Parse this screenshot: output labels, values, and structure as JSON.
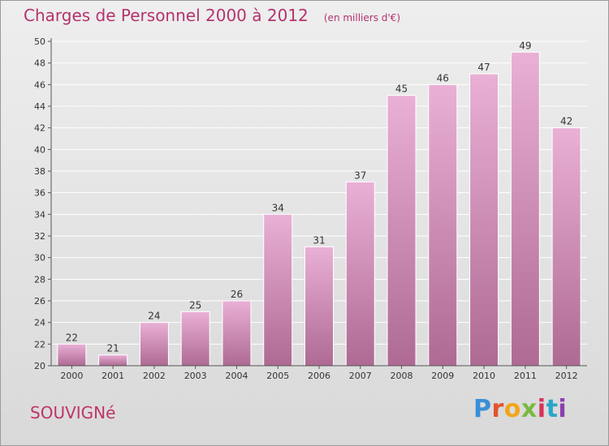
{
  "header": {
    "title": "Charges de Personnel 2000 à 2012",
    "subtitle": "(en milliers d'€)"
  },
  "footer": {
    "commune": "SOUVIGNé",
    "logo_text": "Proxiti",
    "logo_colors": [
      "#3a8fd6",
      "#e0532c",
      "#f2a51a",
      "#7ab93d",
      "#d8335a",
      "#2aa5c9",
      "#8a3fb0"
    ]
  },
  "colors": {
    "bar_top": "#eab0d6",
    "bar_bottom": "#ae6a93",
    "bar_edge": "#ffffff",
    "grid": "#ffffff",
    "title": "#b4336e"
  },
  "chart_data": {
    "type": "bar",
    "categories": [
      "2000",
      "2001",
      "2002",
      "2003",
      "2004",
      "2005",
      "2006",
      "2007",
      "2008",
      "2009",
      "2010",
      "2011",
      "2012"
    ],
    "values": [
      22,
      21,
      24,
      25,
      26,
      34,
      31,
      37,
      45,
      46,
      47,
      49,
      42
    ],
    "ylim": [
      20,
      50
    ],
    "yticks": [
      20,
      22,
      24,
      26,
      28,
      30,
      32,
      34,
      36,
      38,
      40,
      42,
      44,
      46,
      48,
      50
    ],
    "grid": true,
    "data_labels": true
  }
}
